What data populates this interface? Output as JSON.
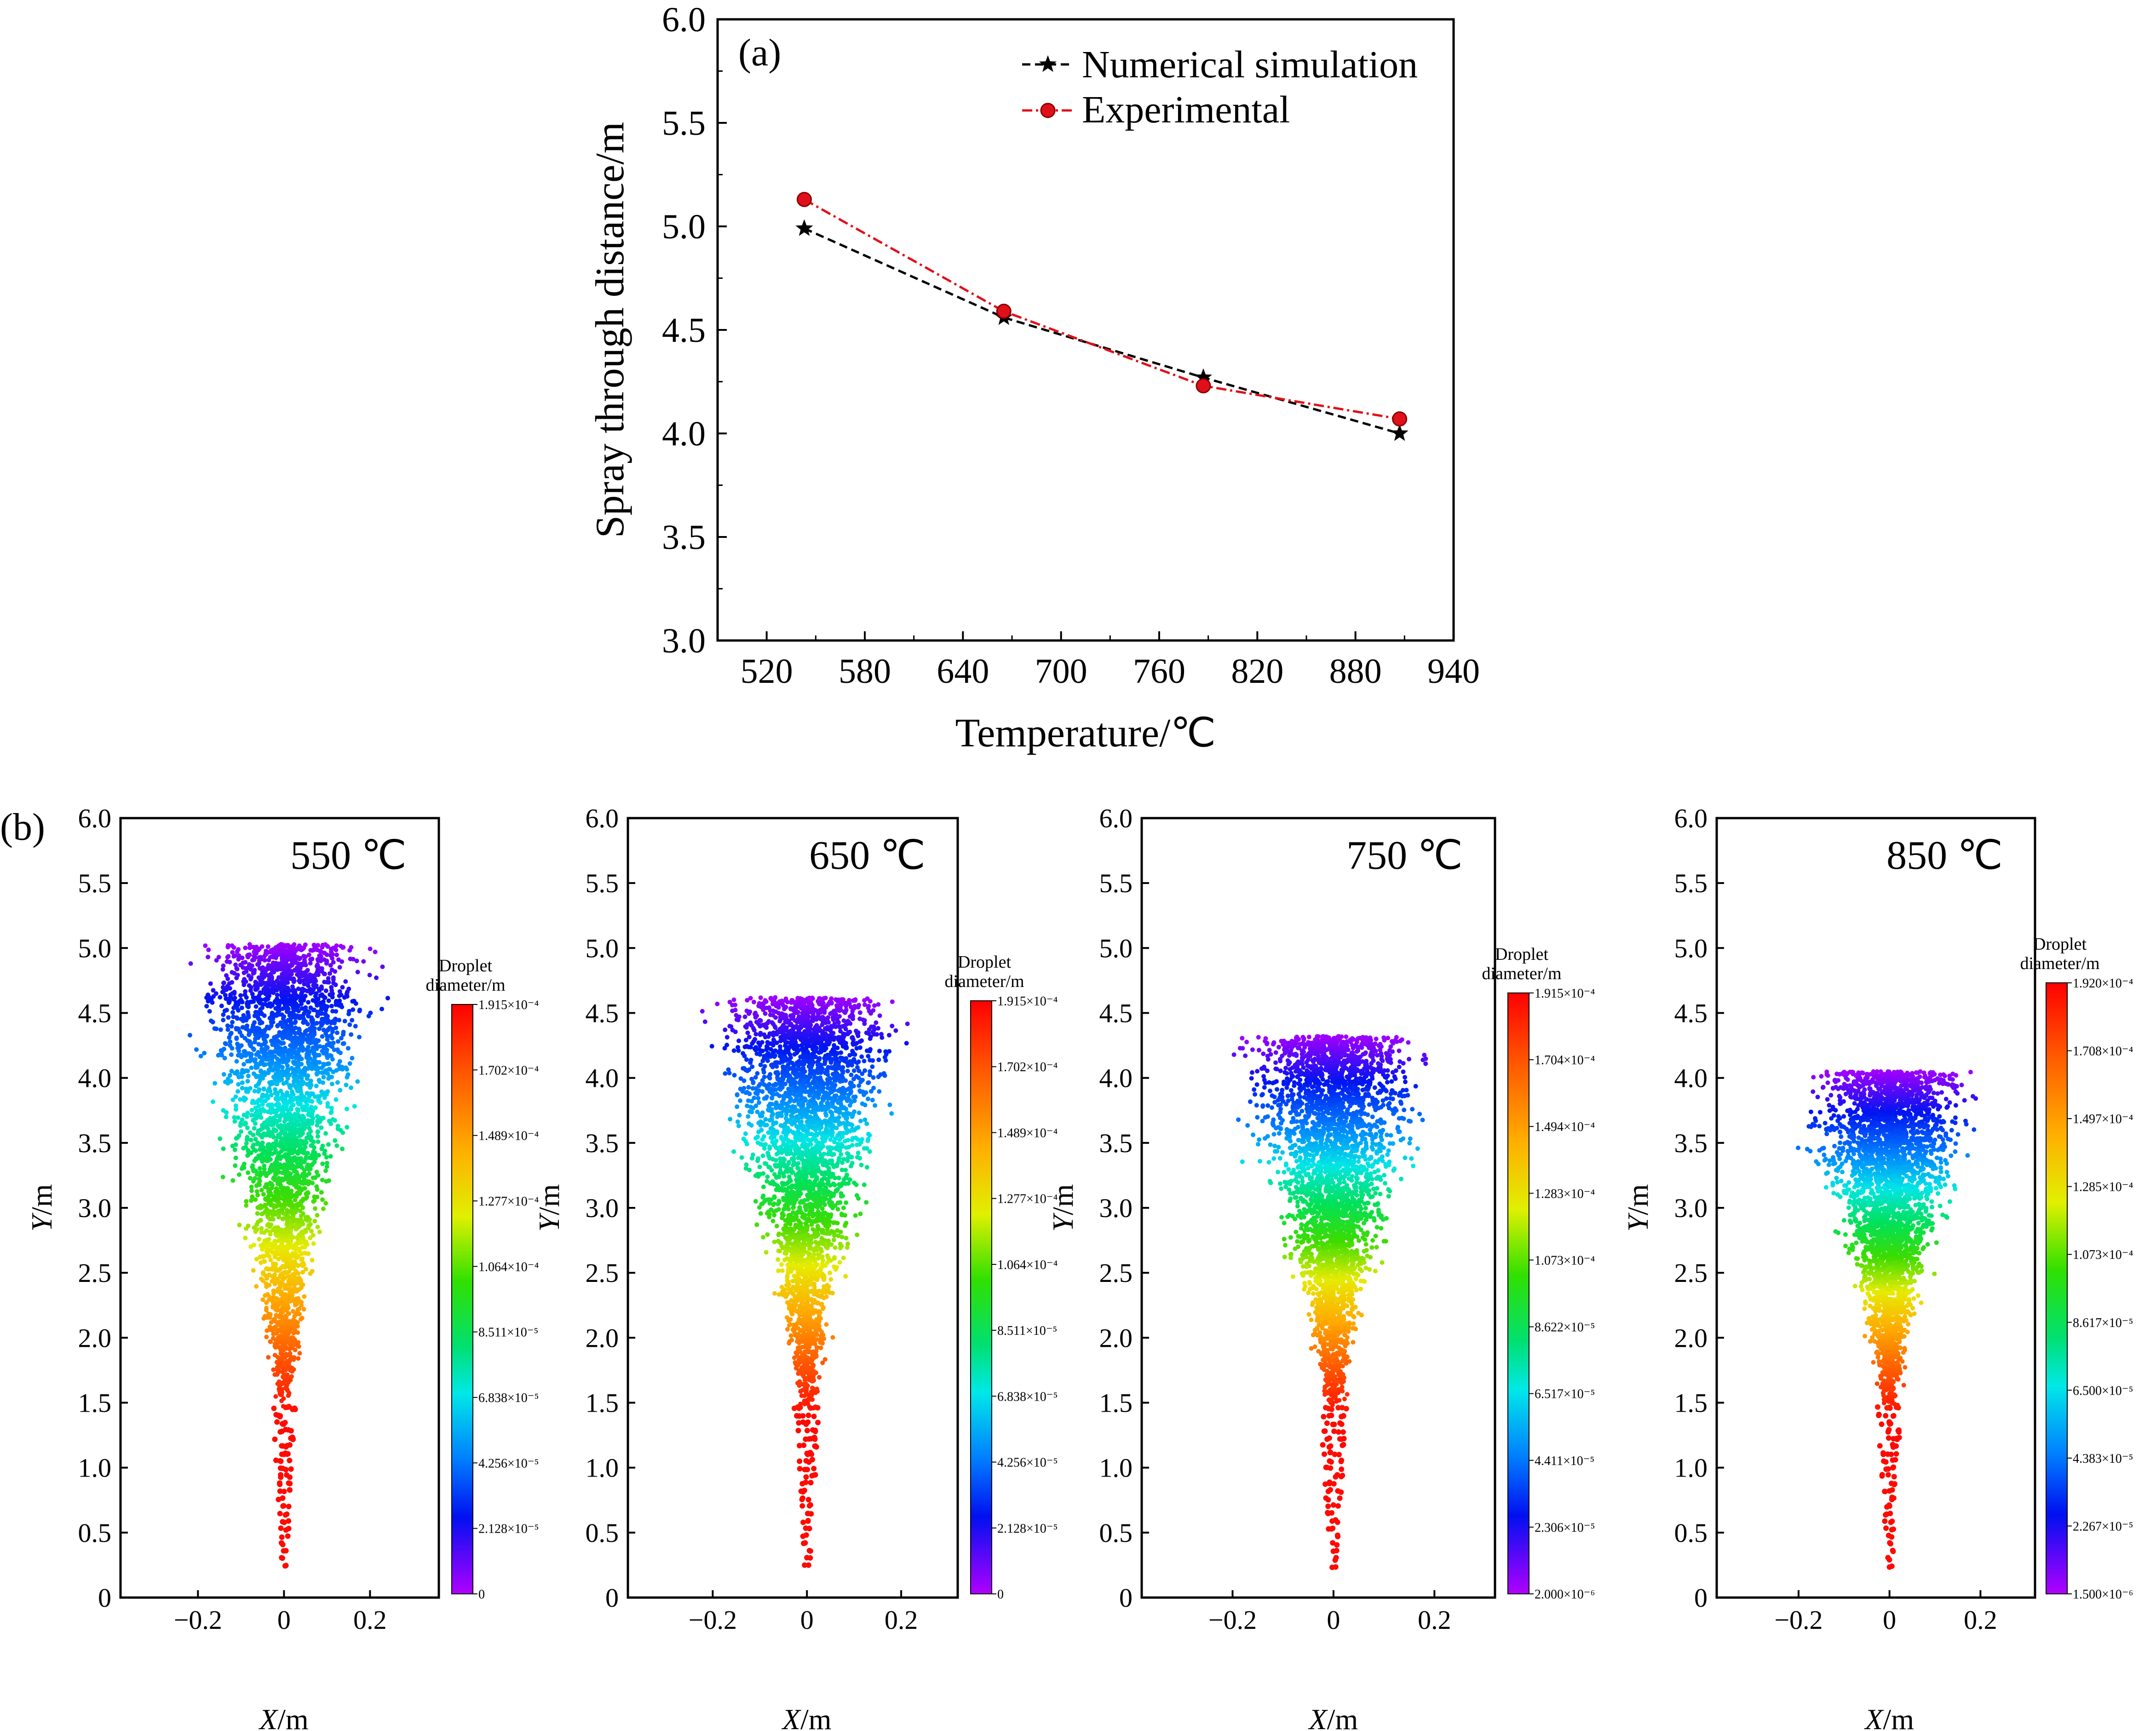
{
  "chart_data": [
    {
      "type": "line",
      "panel_label": "(a)",
      "xlabel": "Temperature/℃",
      "ylabel": "Spray through distance/m",
      "xlim": [
        490,
        940
      ],
      "ylim": [
        3.0,
        6.0
      ],
      "x_ticks": [
        520,
        580,
        640,
        700,
        760,
        820,
        880,
        940
      ],
      "y_ticks": [
        3.0,
        3.5,
        4.0,
        4.5,
        5.0,
        5.5,
        6.0
      ],
      "x": [
        543,
        665,
        787,
        907
      ],
      "series": [
        {
          "name": "Numerical simulation",
          "values": [
            4.99,
            4.56,
            4.27,
            4.0
          ],
          "color": "#000000",
          "marker": "star",
          "line": "dashed"
        },
        {
          "name": "Experimental",
          "values": [
            5.13,
            4.59,
            4.23,
            4.07
          ],
          "color": "#e0101a",
          "marker": "circle",
          "line": "dashdot"
        }
      ]
    },
    {
      "type": "scatter",
      "panel_label": "(b)",
      "title": "550 ℃",
      "xlabel_italic": "X",
      "xlabel_unit": "/m",
      "ylabel_italic": "Y",
      "ylabel_unit": "/m",
      "xlim": [
        -0.38,
        0.36
      ],
      "ylim": [
        0,
        6.0
      ],
      "x_ticks": [
        "-0.2",
        "0",
        "0.2"
      ],
      "x_tick_values": [
        -0.2,
        0,
        0.2
      ],
      "y_ticks": [
        0,
        0.5,
        1.0,
        1.5,
        2.0,
        2.5,
        3.0,
        3.5,
        4.0,
        4.5,
        5.0,
        5.5,
        6.0
      ],
      "spray_top": 5.03,
      "spray_halfwidth": 0.31,
      "colorbar": {
        "title_line1": "Droplet",
        "title_line2": "diameter/m",
        "ticks": [
          "1.915×10⁻⁴",
          "1.702×10⁻⁴",
          "1.489×10⁻⁴",
          "1.277×10⁻⁴",
          "1.064×10⁻⁴",
          "8.511×10⁻⁵",
          "6.838×10⁻⁵",
          "4.256×10⁻⁵",
          "2.128×10⁻⁵",
          "0"
        ]
      }
    },
    {
      "type": "scatter",
      "title": "650 ℃",
      "xlabel_italic": "X",
      "xlabel_unit": "/m",
      "ylabel_italic": "Y",
      "ylabel_unit": "/m",
      "xlim": [
        -0.38,
        0.32
      ],
      "ylim": [
        0,
        6.0
      ],
      "x_ticks": [
        "-0.2",
        "0",
        "0.2"
      ],
      "x_tick_values": [
        -0.2,
        0,
        0.2
      ],
      "y_ticks": [
        0,
        0.5,
        1.0,
        1.5,
        2.0,
        2.5,
        3.0,
        3.5,
        4.0,
        4.5,
        5.0,
        5.5,
        6.0
      ],
      "spray_top": 4.62,
      "spray_halfwidth": 0.29,
      "colorbar": {
        "title_line1": "Droplet",
        "title_line2": "diameter/m",
        "ticks": [
          "1.915×10⁻⁴",
          "1.702×10⁻⁴",
          "1.489×10⁻⁴",
          "1.277×10⁻⁴",
          "1.064×10⁻⁴",
          "8.511×10⁻⁵",
          "6.838×10⁻⁵",
          "4.256×10⁻⁵",
          "2.128×10⁻⁵",
          "0"
        ]
      }
    },
    {
      "type": "scatter",
      "title": "750 ℃",
      "xlabel_italic": "X",
      "xlabel_unit": "/m",
      "ylabel_italic": "Y",
      "ylabel_unit": "/m",
      "xlim": [
        -0.38,
        0.32
      ],
      "ylim": [
        0,
        6.0
      ],
      "x_ticks": [
        "-0.2",
        "0",
        "0.2"
      ],
      "x_tick_values": [
        -0.2,
        0,
        0.2
      ],
      "y_ticks": [
        0,
        0.5,
        1.0,
        1.5,
        2.0,
        2.5,
        3.0,
        3.5,
        4.0,
        4.5,
        5.0,
        5.5,
        6.0
      ],
      "spray_top": 4.32,
      "spray_halfwidth": 0.27,
      "colorbar": {
        "title_line1": "Droplet",
        "title_line2": "diameter/m",
        "ticks": [
          "1.915×10⁻⁴",
          "1.704×10⁻⁴",
          "1.494×10⁻⁴",
          "1.283×10⁻⁴",
          "1.073×10⁻⁴",
          "8.622×10⁻⁵",
          "6.517×10⁻⁵",
          "4.411×10⁻⁵",
          "2.306×10⁻⁵",
          "2.000×10⁻⁶"
        ]
      }
    },
    {
      "type": "scatter",
      "title": "850 ℃",
      "xlabel_italic": "X",
      "xlabel_unit": "/m",
      "ylabel_italic": "Y",
      "ylabel_unit": "/m",
      "xlim": [
        -0.38,
        0.32
      ],
      "ylim": [
        0,
        6.0
      ],
      "x_ticks": [
        "-0.2",
        "0",
        "0.2"
      ],
      "x_tick_values": [
        -0.2,
        0,
        0.2
      ],
      "y_ticks": [
        0,
        0.5,
        1.0,
        1.5,
        2.0,
        2.5,
        3.0,
        3.5,
        4.0,
        4.5,
        5.0,
        5.5,
        6.0
      ],
      "spray_top": 4.05,
      "spray_halfwidth": 0.27,
      "colorbar": {
        "title_line1": "Droplet",
        "title_line2": "diameter/m",
        "ticks": [
          "1.920×10⁻⁴",
          "1.708×10⁻⁴",
          "1.497×10⁻⁴",
          "1.285×10⁻⁴",
          "1.073×10⁻⁴",
          "8.617×10⁻⁵",
          "6.500×10⁻⁵",
          "4.383×10⁻⁵",
          "2.267×10⁻⁵",
          "1.500×10⁻⁶"
        ]
      }
    }
  ]
}
